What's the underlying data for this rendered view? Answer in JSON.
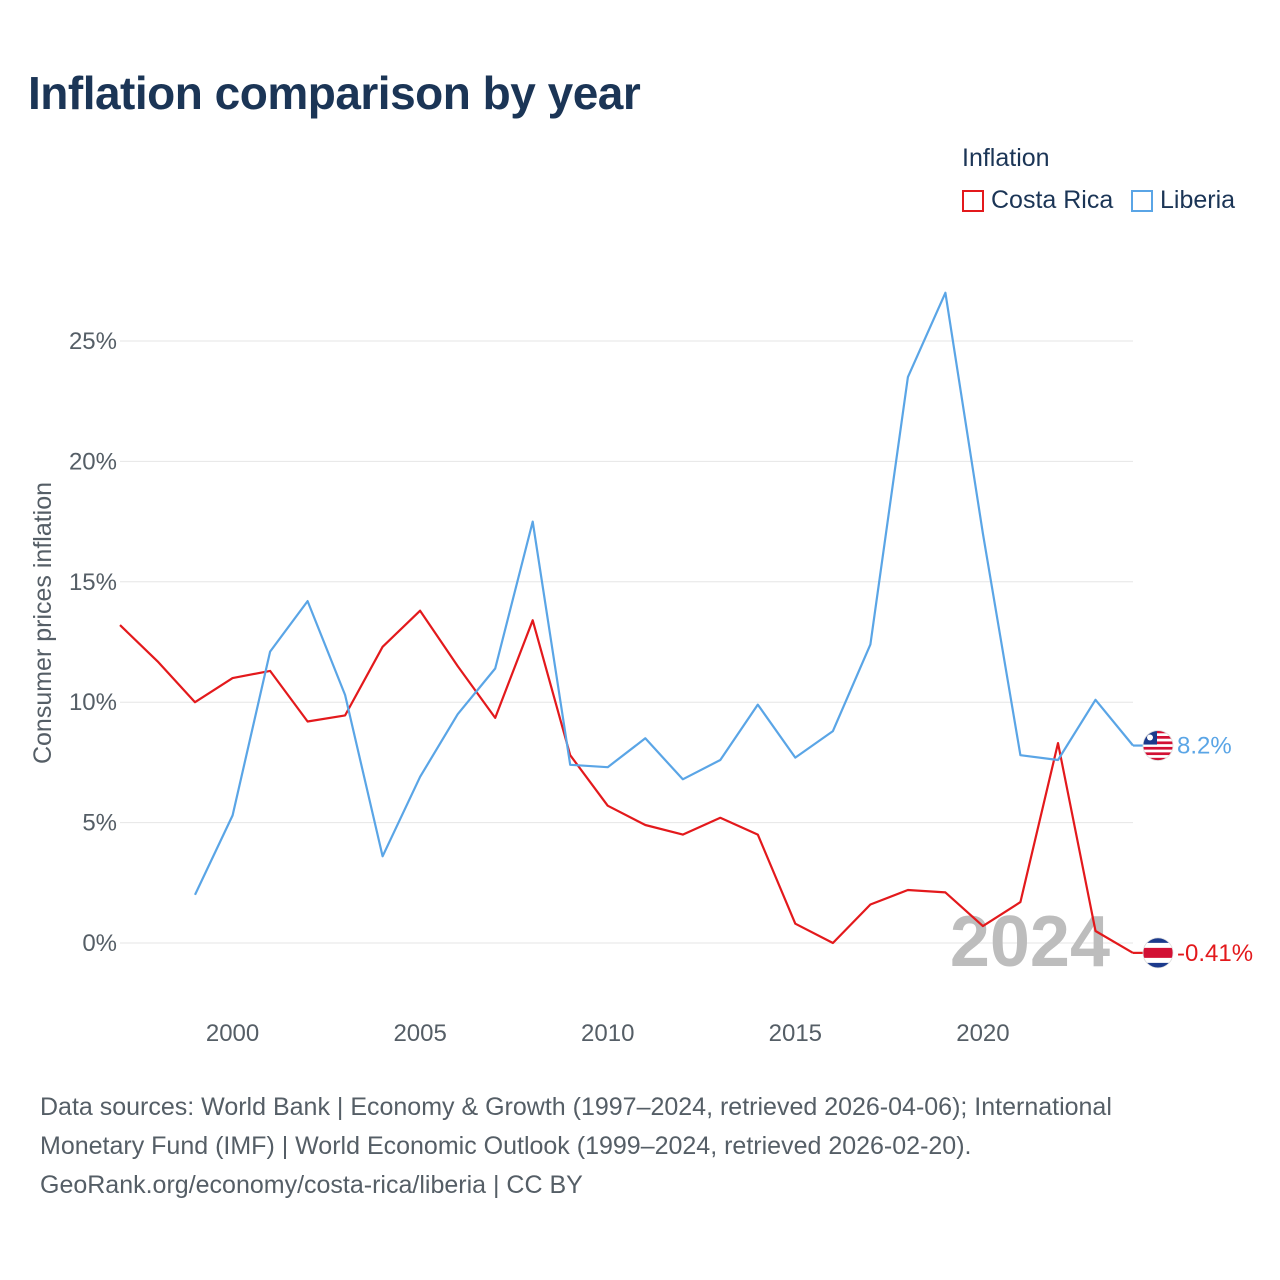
{
  "title": "Inflation comparison by year",
  "legend": {
    "title": "Inflation",
    "items": [
      {
        "label": "Costa Rica",
        "color": "#e3191c"
      },
      {
        "label": "Liberia",
        "color": "#5aa5e6"
      }
    ]
  },
  "footer": {
    "line1": "Data sources: World Bank | Economy & Growth (1997–2024, retrieved 2026-04-06); International",
    "line2": "Monetary Fund (IMF) | World Economic Outlook (1999–2024, retrieved 2026-02-20).",
    "line3": "GeoRank.org/economy/costa-rica/liberia | CC BY"
  },
  "chart_data": {
    "type": "line",
    "title": "Inflation comparison by year",
    "xlabel": "",
    "ylabel": "Consumer prices inflation",
    "xlim": [
      1997,
      2024
    ],
    "ylim": [
      -2.5,
      29
    ],
    "x_ticks": [
      2000,
      2005,
      2010,
      2015,
      2020
    ],
    "y_ticks": [
      0,
      5,
      10,
      15,
      20,
      25
    ],
    "y_tick_labels": [
      "0%",
      "5%",
      "10%",
      "15%",
      "20%",
      "25%"
    ],
    "grid": true,
    "year_watermark": "2024",
    "series": [
      {
        "name": "Costa Rica",
        "color": "#e3191c",
        "end_label": "-0.41%",
        "flag": "costa-rica-flag-icon",
        "x": [
          1997,
          1998,
          1999,
          2000,
          2001,
          2002,
          2003,
          2004,
          2005,
          2006,
          2007,
          2008,
          2009,
          2010,
          2011,
          2012,
          2013,
          2014,
          2015,
          2016,
          2017,
          2018,
          2019,
          2020,
          2021,
          2022,
          2023,
          2024
        ],
        "y": [
          13.2,
          11.7,
          10.0,
          11.0,
          11.3,
          9.2,
          9.45,
          12.3,
          13.8,
          11.5,
          9.35,
          13.4,
          7.8,
          5.7,
          4.9,
          4.5,
          5.2,
          4.5,
          0.8,
          0.0,
          1.6,
          2.2,
          2.1,
          0.7,
          1.7,
          8.3,
          0.5,
          -0.41
        ]
      },
      {
        "name": "Liberia",
        "color": "#5aa5e6",
        "end_label": "8.2%",
        "flag": "liberia-flag-icon",
        "x": [
          1999,
          2000,
          2001,
          2002,
          2003,
          2004,
          2005,
          2006,
          2007,
          2008,
          2009,
          2010,
          2011,
          2012,
          2013,
          2014,
          2015,
          2016,
          2017,
          2018,
          2019,
          2020,
          2021,
          2022,
          2023,
          2024
        ],
        "y": [
          2.0,
          5.3,
          12.1,
          14.2,
          10.3,
          3.6,
          6.9,
          9.5,
          11.4,
          17.5,
          7.4,
          7.3,
          8.5,
          6.8,
          7.6,
          9.9,
          7.7,
          8.8,
          12.4,
          23.5,
          27.0,
          17.0,
          7.8,
          7.6,
          10.1,
          8.2
        ]
      }
    ]
  }
}
